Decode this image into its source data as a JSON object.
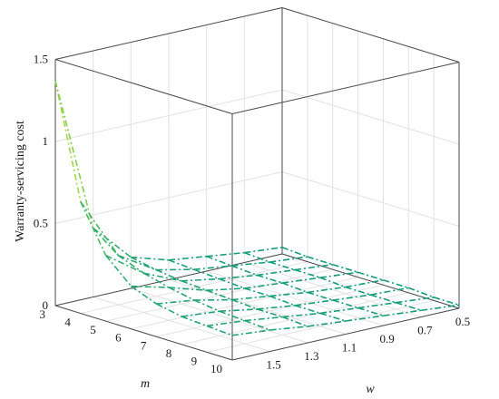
{
  "chart_data": {
    "type": "surface",
    "zlabel": "Warranty-servicing cost",
    "xlabel": "m",
    "ylabel": "w",
    "zlim": [
      0,
      1.5
    ],
    "grid": true,
    "m_values": [
      3,
      4,
      5,
      6,
      7,
      8,
      9,
      10
    ],
    "w_values": [
      0.5,
      0.7,
      0.9,
      1.1,
      1.3,
      1.5,
      1.7
    ],
    "z_ticks": [
      "0",
      "0.5",
      "1",
      "1.5"
    ],
    "m_ticks": [
      "3",
      "4",
      "5",
      "6",
      "7",
      "8",
      "9",
      "10"
    ],
    "w_ticks": [
      "0.5",
      "0.7",
      "0.9",
      "1.1",
      "1.3",
      "1.5"
    ],
    "z_by_w": [
      {
        "w": 1.7,
        "z": [
          1.37,
          0.68,
          0.4,
          0.26,
          0.2,
          0.17,
          0.16,
          0.15
        ]
      },
      {
        "w": 1.5,
        "z": [
          0.42,
          0.3,
          0.24,
          0.2,
          0.17,
          0.15,
          0.14,
          0.13
        ]
      },
      {
        "w": 1.3,
        "z": [
          0.19,
          0.16,
          0.14,
          0.13,
          0.12,
          0.11,
          0.11,
          0.1
        ]
      },
      {
        "w": 1.1,
        "z": [
          0.12,
          0.11,
          0.1,
          0.09,
          0.09,
          0.08,
          0.08,
          0.08
        ]
      },
      {
        "w": 0.9,
        "z": [
          0.09,
          0.08,
          0.07,
          0.07,
          0.06,
          0.06,
          0.06,
          0.06
        ]
      },
      {
        "w": 0.7,
        "z": [
          0.06,
          0.05,
          0.05,
          0.05,
          0.04,
          0.04,
          0.04,
          0.04
        ]
      },
      {
        "w": 0.5,
        "z": [
          0.04,
          0.03,
          0.03,
          0.03,
          0.03,
          0.03,
          0.02,
          0.02
        ]
      }
    ],
    "colors": {
      "low": "#0f9a7c",
      "mid": "#5ec25c",
      "high": "#f0ef2a"
    }
  }
}
